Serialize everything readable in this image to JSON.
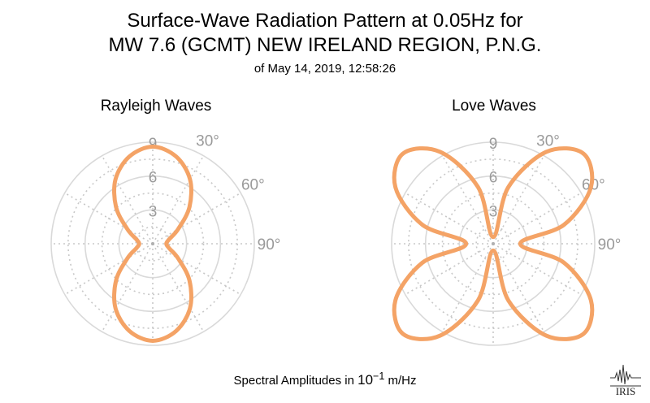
{
  "title_line1": "Surface-Wave Radiation Pattern at 0.05Hz for",
  "title_line2": "MW 7.6 (GCMT) NEW IRELAND REGION, P.N.G.",
  "subtitle": "of May 14, 2019, 12:58:26",
  "footer": {
    "prefix": "Spectral Amplitudes in ",
    "base": "10",
    "exponent": "−1",
    "suffix": " m/Hz"
  },
  "logo_text": "IRIS",
  "colors": {
    "curve": "#f4a366",
    "grid_solid": "#d9d9d9",
    "grid_dotted": "#c8c8c8",
    "tick_text": "#9a9a9a"
  },
  "chart_data": [
    {
      "type": "polar",
      "title": "Rayleigh Waves",
      "radial_ticks": [
        3,
        6,
        9
      ],
      "radial_range": [
        0,
        9
      ],
      "angular_ticks": [
        "30°",
        "60°",
        "90°"
      ],
      "series": [
        {
          "theta_deg": [
            0,
            15,
            30,
            45,
            60,
            75,
            90,
            105,
            120,
            135,
            150,
            165,
            180,
            195,
            210,
            225,
            240,
            255,
            270,
            285,
            300,
            315,
            330,
            345
          ],
          "r": [
            8.6,
            8.0,
            6.6,
            4.6,
            2.6,
            1.5,
            1.2,
            1.5,
            2.6,
            4.6,
            6.6,
            8.0,
            8.6,
            8.0,
            6.6,
            4.6,
            2.6,
            1.5,
            1.2,
            1.5,
            2.6,
            4.6,
            6.6,
            8.0
          ]
        }
      ]
    },
    {
      "type": "polar",
      "title": "Love Waves",
      "radial_ticks": [
        3,
        6,
        9
      ],
      "radial_range": [
        0,
        9
      ],
      "angular_ticks": [
        "30°",
        "60°",
        "90°"
      ],
      "series": [
        {
          "theta_deg": [
            0,
            15,
            30,
            45,
            60,
            75,
            90,
            105,
            120,
            135,
            150,
            165,
            180,
            195,
            210,
            225,
            240,
            255,
            270,
            285,
            300,
            315,
            330,
            345
          ],
          "r": [
            0.6,
            5.2,
            9.4,
            11.3,
            10.0,
            6.5,
            2.4,
            6.5,
            10.0,
            11.3,
            9.4,
            5.2,
            0.6,
            5.2,
            9.4,
            11.3,
            10.0,
            6.5,
            2.4,
            6.5,
            10.0,
            11.3,
            9.4,
            5.2
          ]
        }
      ]
    }
  ]
}
